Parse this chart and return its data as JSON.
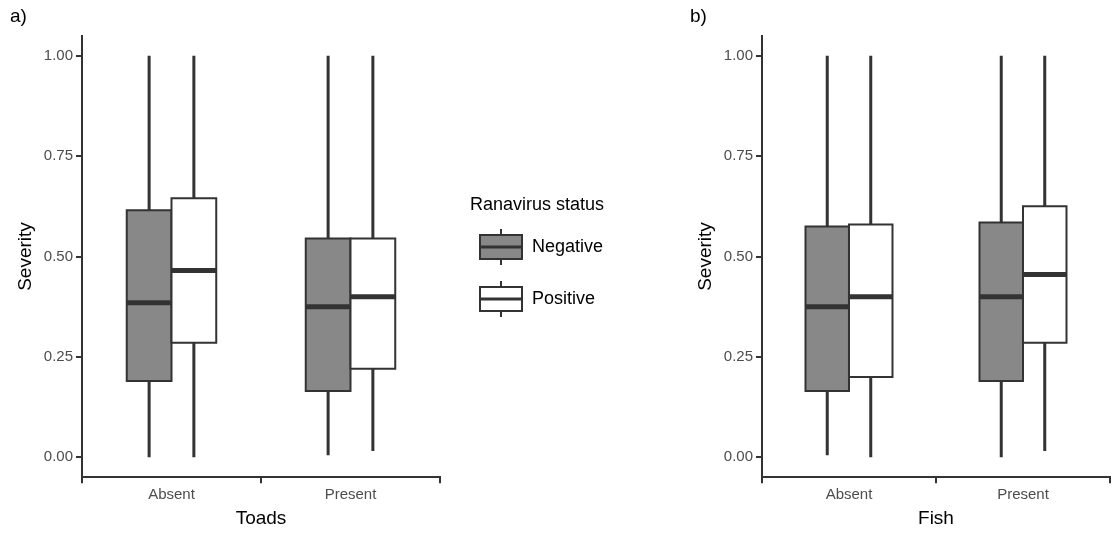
{
  "chart_data": [
    {
      "type": "box",
      "title": "a)",
      "xlabel": "Toads",
      "ylabel": "Severity",
      "categories": [
        "Absent",
        "Present"
      ],
      "ylim": [
        -0.05,
        1.05
      ],
      "yticks": [
        {
          "value": 0,
          "label": "0.00"
        },
        {
          "value": 0.25,
          "label": "0.25"
        },
        {
          "value": 0.5,
          "label": "0.50"
        },
        {
          "value": 0.75,
          "label": "0.75"
        },
        {
          "value": 1,
          "label": "1.00"
        }
      ],
      "grid": false,
      "legend": "right",
      "legend_title": "Ranavirus status",
      "series": [
        {
          "name": "Negative",
          "color": "#888888",
          "boxes": [
            {
              "low": 0.0,
              "q1": 0.19,
              "median": 0.385,
              "q3": 0.615,
              "high": 1.0
            },
            {
              "low": 0.005,
              "q1": 0.165,
              "median": 0.375,
              "q3": 0.545,
              "high": 1.0
            }
          ]
        },
        {
          "name": "Positive",
          "color": "#ffffff",
          "boxes": [
            {
              "low": 0.0,
              "q1": 0.285,
              "median": 0.465,
              "q3": 0.645,
              "high": 1.0
            },
            {
              "low": 0.015,
              "q1": 0.22,
              "median": 0.4,
              "q3": 0.545,
              "high": 1.0
            }
          ]
        }
      ]
    },
    {
      "type": "box",
      "title": "b)",
      "xlabel": "Fish",
      "ylabel": "Severity",
      "categories": [
        "Absent",
        "Present"
      ],
      "ylim": [
        -0.05,
        1.05
      ],
      "yticks": [
        {
          "value": 0,
          "label": "0.00"
        },
        {
          "value": 0.25,
          "label": "0.25"
        },
        {
          "value": 0.5,
          "label": "0.50"
        },
        {
          "value": 0.75,
          "label": "0.75"
        },
        {
          "value": 1,
          "label": "1.00"
        }
      ],
      "grid": false,
      "series": [
        {
          "color": "#888888",
          "boxes": [
            {
              "low": 0.005,
              "q1": 0.165,
              "median": 0.375,
              "q3": 0.575,
              "high": 1.0
            },
            {
              "low": 0.0,
              "q1": 0.19,
              "median": 0.4,
              "q3": 0.585,
              "high": 1.0
            }
          ]
        },
        {
          "color": "#ffffff",
          "boxes": [
            {
              "low": 0.0,
              "q1": 0.2,
              "median": 0.4,
              "q3": 0.58,
              "high": 1.0
            },
            {
              "low": 0.015,
              "q1": 0.285,
              "median": 0.455,
              "q3": 0.625,
              "high": 1.0
            }
          ]
        }
      ]
    }
  ]
}
